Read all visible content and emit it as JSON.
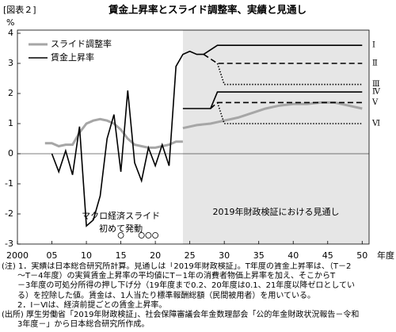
{
  "header": "[図表２]",
  "chart_data": {
    "type": "line",
    "title": "賃金上昇率とスライド調整率、実績と見通し",
    "y_unit": "%",
    "x_unit": "年度",
    "xlim": [
      2000,
      2051
    ],
    "ylim": [
      -3,
      4
    ],
    "xticks": [
      2000,
      {
        "value": 2005,
        "label": "05"
      },
      {
        "value": 2010,
        "label": "10"
      },
      {
        "value": 2015,
        "label": "15"
      },
      {
        "value": 2020,
        "label": "20"
      },
      {
        "value": 2025,
        "label": "25"
      },
      {
        "value": 2030,
        "label": "30"
      },
      {
        "value": 2035,
        "label": "35"
      },
      {
        "value": 2040,
        "label": "40"
      },
      {
        "value": 2045,
        "label": "45"
      },
      {
        "value": 2050,
        "label": "50"
      }
    ],
    "yticks": [
      -3,
      -2,
      -1,
      0,
      1,
      2,
      3,
      4
    ],
    "legend": "upper left",
    "projection": {
      "from": 2024,
      "label": "2019年財政検証における見通し",
      "color": "#e6e6e6"
    },
    "annotation": {
      "x": 2015,
      "lines": [
        "マクロ経済スライド",
        "初めて発動"
      ]
    },
    "slide_years": [
      2015,
      2018,
      2019,
      2020
    ],
    "series": [
      {
        "name": "スライド調整率",
        "label_at": "legend",
        "color": "#a6a6a6",
        "width": 3,
        "dash": "solid",
        "x": [
          2004,
          2005,
          2006,
          2007,
          2008,
          2009,
          2010,
          2011,
          2012,
          2013,
          2014,
          2015,
          2016,
          2017,
          2018,
          2019,
          2020,
          2021,
          2022,
          2023,
          2024,
          2024,
          2024,
          2026,
          2028,
          2030,
          2032,
          2034,
          2036,
          2038,
          2040,
          2042,
          2044,
          2046,
          2048,
          2050
        ],
        "values": [
          0.35,
          0.35,
          0.25,
          0.3,
          0.3,
          0.7,
          1.0,
          1.1,
          1.15,
          1.1,
          1.0,
          0.8,
          0.5,
          0.3,
          0.25,
          0.2,
          0.2,
          0.25,
          0.3,
          0.4,
          0.4,
          null,
          0.85,
          0.95,
          1.0,
          1.1,
          1.2,
          1.35,
          1.5,
          1.6,
          1.65,
          1.65,
          1.7,
          1.7,
          1.6,
          1.5
        ]
      },
      {
        "name": "賃金上昇率",
        "label_at": "legend",
        "color": "#000000",
        "width": 1.6,
        "dash": "solid",
        "x": [
          2005,
          2006,
          2007,
          2008,
          2009,
          2010,
          2011,
          2012,
          2013,
          2014,
          2015,
          2016,
          2017,
          2018,
          2019,
          2020,
          2021,
          2022,
          2023,
          2024,
          2025,
          2026,
          2027
        ],
        "values": [
          0,
          -0.6,
          0.1,
          -0.7,
          0.9,
          -2.4,
          -2.2,
          -1.4,
          0.5,
          1.3,
          -0.6,
          2.1,
          -0.3,
          -0.9,
          0.2,
          -0.4,
          0.3,
          -0.4,
          2.9,
          3.3,
          3.4,
          3.3,
          3.3
        ]
      },
      {
        "name": "Ⅰ",
        "label_at": "end",
        "color": "#000000",
        "width": 1.6,
        "dash": "solid",
        "x": [
          2027,
          2029,
          2050
        ],
        "values": [
          3.3,
          3.6,
          3.6
        ]
      },
      {
        "name": "Ⅱ",
        "label_at": "end",
        "color": "#000000",
        "width": 1.6,
        "dash": "dashed",
        "x": [
          2027,
          2029,
          2050
        ],
        "values": [
          3.3,
          3.0,
          3.0
        ]
      },
      {
        "name": "Ⅲ",
        "label_at": "end",
        "color": "#000000",
        "width": 1.6,
        "dash": "dotted",
        "x": [
          2029,
          2030,
          2050
        ],
        "values": [
          3.0,
          2.3,
          2.3
        ]
      },
      {
        "name": "Ⅳ",
        "label_at": "end",
        "color": "#000000",
        "width": 1.6,
        "dash": "solid",
        "x": [
          2024,
          2028,
          2029,
          2050
        ],
        "values": [
          1.5,
          1.5,
          2.05,
          2.05
        ]
      },
      {
        "name": "Ⅴ",
        "label_at": "end",
        "color": "#000000",
        "width": 1.6,
        "dash": "dashed",
        "x": [
          2028,
          2029,
          2050
        ],
        "values": [
          1.5,
          1.7,
          1.7
        ]
      },
      {
        "name": "Ⅵ",
        "label_at": "end",
        "color": "#000000",
        "width": 1.6,
        "dash": "dotted",
        "x": [
          2029,
          2030,
          2050
        ],
        "values": [
          1.7,
          1.0,
          1.0
        ]
      }
    ]
  },
  "notes": [
    "(注) 1．実績は日本総合研究所計算。見通しは「2019年財政検証」。T年度の賃金上昇率は、（T－2",
    "　　～T－4年度）の実質賃金上昇率の平均値にT－1年の消費者物価上昇率を加え、そこからT",
    "　　－3年度の可処分所得の押し下げ分（19年度まで0.2、20年度は0.1、21年度以降ゼロとしてい",
    "　　る）を控除した値。賃金は、1人当たり標準報酬総額（民間被用者）を用いている。",
    "　　2．Ⅰ－Ⅵは、経済前提ごとの賃金上昇率。",
    "(出所) 厚生労働省「2019年財政検証」、社会保障審議会年金数理部会「公的年金財政状況報告－令和",
    "　　3年度－」から日本総合研究所作成。"
  ]
}
